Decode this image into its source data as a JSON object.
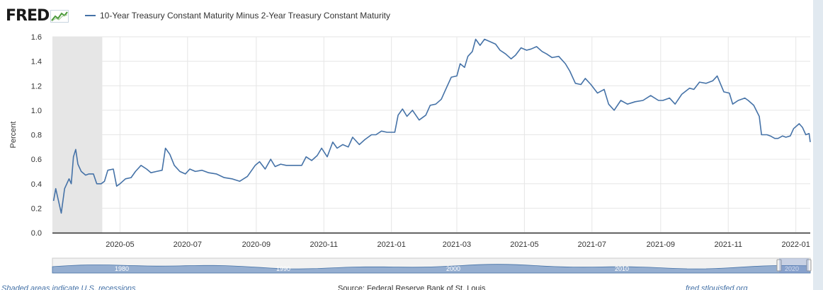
{
  "header": {
    "logo_text": "FRED",
    "logo_icon": "chart-line-icon",
    "series_name": "10-Year Treasury Constant Maturity Minus 2-Year Treasury Constant Maturity"
  },
  "colors": {
    "series": "#4572a7",
    "recession_shade": "#e6e6e6",
    "navigator_fill": "#95aed0",
    "background": "#e1e9f0"
  },
  "footer": {
    "left": "Shaded areas indicate U.S. recessions",
    "center": "Source: Federal Reserve Bank of St. Louis",
    "right": "fred.stlouisfed.org"
  },
  "chart_data": {
    "type": "line",
    "title": "",
    "ylabel": "Percent",
    "xlabel": "",
    "ylim": [
      0.0,
      1.6
    ],
    "yticks": [
      "0.0",
      "0.2",
      "0.4",
      "0.6",
      "0.8",
      "1.0",
      "1.2",
      "1.4",
      "1.6"
    ],
    "xlim": [
      "2020-03-01",
      "2022-01-14"
    ],
    "xticks": [
      "2020-05",
      "2020-07",
      "2020-09",
      "2020-11",
      "2021-01",
      "2021-03",
      "2021-05",
      "2021-07",
      "2021-09",
      "2021-11",
      "2022-01"
    ],
    "recession_shading": [
      {
        "start": "2020-03-01",
        "end": "2020-04-15"
      }
    ],
    "legend": "top-left",
    "grid": true,
    "navigator": {
      "labels": [
        "1980",
        "1990",
        "2000",
        "2010",
        "2020"
      ]
    },
    "series": [
      {
        "name": "10-Year Treasury Constant Maturity Minus 2-Year Treasury Constant Maturity",
        "points": [
          [
            "2020-03-02",
            0.26
          ],
          [
            "2020-03-04",
            0.36
          ],
          [
            "2020-03-06",
            0.28
          ],
          [
            "2020-03-09",
            0.16
          ],
          [
            "2020-03-12",
            0.36
          ],
          [
            "2020-03-16",
            0.44
          ],
          [
            "2020-03-18",
            0.4
          ],
          [
            "2020-03-20",
            0.62
          ],
          [
            "2020-03-22",
            0.68
          ],
          [
            "2020-03-24",
            0.56
          ],
          [
            "2020-03-27",
            0.5
          ],
          [
            "2020-03-31",
            0.47
          ],
          [
            "2020-04-03",
            0.48
          ],
          [
            "2020-04-07",
            0.48
          ],
          [
            "2020-04-10",
            0.4
          ],
          [
            "2020-04-14",
            0.4
          ],
          [
            "2020-04-17",
            0.42
          ],
          [
            "2020-04-20",
            0.51
          ],
          [
            "2020-04-25",
            0.52
          ],
          [
            "2020-04-28",
            0.38
          ],
          [
            "2020-05-01",
            0.4
          ],
          [
            "2020-05-06",
            0.44
          ],
          [
            "2020-05-11",
            0.45
          ],
          [
            "2020-05-15",
            0.5
          ],
          [
            "2020-05-20",
            0.55
          ],
          [
            "2020-05-25",
            0.52
          ],
          [
            "2020-05-29",
            0.49
          ],
          [
            "2020-06-03",
            0.5
          ],
          [
            "2020-06-08",
            0.51
          ],
          [
            "2020-06-11",
            0.69
          ],
          [
            "2020-06-15",
            0.64
          ],
          [
            "2020-06-19",
            0.55
          ],
          [
            "2020-06-24",
            0.5
          ],
          [
            "2020-06-29",
            0.48
          ],
          [
            "2020-07-03",
            0.52
          ],
          [
            "2020-07-08",
            0.5
          ],
          [
            "2020-07-14",
            0.51
          ],
          [
            "2020-07-20",
            0.49
          ],
          [
            "2020-07-27",
            0.48
          ],
          [
            "2020-08-03",
            0.45
          ],
          [
            "2020-08-10",
            0.44
          ],
          [
            "2020-08-17",
            0.42
          ],
          [
            "2020-08-24",
            0.46
          ],
          [
            "2020-08-31",
            0.55
          ],
          [
            "2020-09-04",
            0.58
          ],
          [
            "2020-09-09",
            0.52
          ],
          [
            "2020-09-14",
            0.6
          ],
          [
            "2020-09-18",
            0.54
          ],
          [
            "2020-09-23",
            0.56
          ],
          [
            "2020-09-28",
            0.55
          ],
          [
            "2020-10-05",
            0.55
          ],
          [
            "2020-10-12",
            0.55
          ],
          [
            "2020-10-16",
            0.62
          ],
          [
            "2020-10-21",
            0.59
          ],
          [
            "2020-10-26",
            0.63
          ],
          [
            "2020-10-30",
            0.69
          ],
          [
            "2020-11-04",
            0.62
          ],
          [
            "2020-11-09",
            0.74
          ],
          [
            "2020-11-13",
            0.69
          ],
          [
            "2020-11-18",
            0.72
          ],
          [
            "2020-11-23",
            0.7
          ],
          [
            "2020-11-27",
            0.78
          ],
          [
            "2020-12-03",
            0.72
          ],
          [
            "2020-12-08",
            0.76
          ],
          [
            "2020-12-14",
            0.8
          ],
          [
            "2020-12-18",
            0.8
          ],
          [
            "2020-12-23",
            0.83
          ],
          [
            "2020-12-28",
            0.82
          ],
          [
            "2021-01-04",
            0.82
          ],
          [
            "2021-01-07",
            0.96
          ],
          [
            "2021-01-11",
            1.01
          ],
          [
            "2021-01-15",
            0.95
          ],
          [
            "2021-01-20",
            1.0
          ],
          [
            "2021-01-26",
            0.92
          ],
          [
            "2021-02-01",
            0.96
          ],
          [
            "2021-02-05",
            1.04
          ],
          [
            "2021-02-10",
            1.05
          ],
          [
            "2021-02-15",
            1.09
          ],
          [
            "2021-02-19",
            1.17
          ],
          [
            "2021-02-24",
            1.27
          ],
          [
            "2021-03-01",
            1.28
          ],
          [
            "2021-03-04",
            1.38
          ],
          [
            "2021-03-08",
            1.35
          ],
          [
            "2021-03-11",
            1.44
          ],
          [
            "2021-03-15",
            1.48
          ],
          [
            "2021-03-18",
            1.58
          ],
          [
            "2021-03-22",
            1.53
          ],
          [
            "2021-03-26",
            1.58
          ],
          [
            "2021-03-31",
            1.56
          ],
          [
            "2021-04-05",
            1.54
          ],
          [
            "2021-04-09",
            1.49
          ],
          [
            "2021-04-14",
            1.46
          ],
          [
            "2021-04-19",
            1.42
          ],
          [
            "2021-04-23",
            1.45
          ],
          [
            "2021-04-28",
            1.51
          ],
          [
            "2021-05-03",
            1.49
          ],
          [
            "2021-05-07",
            1.5
          ],
          [
            "2021-05-12",
            1.52
          ],
          [
            "2021-05-17",
            1.48
          ],
          [
            "2021-05-21",
            1.46
          ],
          [
            "2021-05-26",
            1.43
          ],
          [
            "2021-06-01",
            1.44
          ],
          [
            "2021-06-07",
            1.38
          ],
          [
            "2021-06-11",
            1.32
          ],
          [
            "2021-06-16",
            1.22
          ],
          [
            "2021-06-21",
            1.21
          ],
          [
            "2021-06-25",
            1.26
          ],
          [
            "2021-06-30",
            1.21
          ],
          [
            "2021-07-06",
            1.14
          ],
          [
            "2021-07-12",
            1.17
          ],
          [
            "2021-07-16",
            1.05
          ],
          [
            "2021-07-21",
            1.0
          ],
          [
            "2021-07-27",
            1.08
          ],
          [
            "2021-08-02",
            1.05
          ],
          [
            "2021-08-09",
            1.07
          ],
          [
            "2021-08-16",
            1.08
          ],
          [
            "2021-08-23",
            1.12
          ],
          [
            "2021-08-30",
            1.08
          ],
          [
            "2021-09-03",
            1.08
          ],
          [
            "2021-09-09",
            1.1
          ],
          [
            "2021-09-14",
            1.05
          ],
          [
            "2021-09-20",
            1.13
          ],
          [
            "2021-09-27",
            1.18
          ],
          [
            "2021-10-01",
            1.17
          ],
          [
            "2021-10-06",
            1.23
          ],
          [
            "2021-10-12",
            1.22
          ],
          [
            "2021-10-18",
            1.24
          ],
          [
            "2021-10-22",
            1.28
          ],
          [
            "2021-10-28",
            1.15
          ],
          [
            "2021-11-02",
            1.14
          ],
          [
            "2021-11-05",
            1.05
          ],
          [
            "2021-11-10",
            1.08
          ],
          [
            "2021-11-16",
            1.1
          ],
          [
            "2021-11-19",
            1.08
          ],
          [
            "2021-11-24",
            1.04
          ],
          [
            "2021-11-29",
            0.95
          ],
          [
            "2021-12-01",
            0.8
          ],
          [
            "2021-12-06",
            0.8
          ],
          [
            "2021-12-09",
            0.79
          ],
          [
            "2021-12-13",
            0.77
          ],
          [
            "2021-12-16",
            0.77
          ],
          [
            "2021-12-20",
            0.79
          ],
          [
            "2021-12-23",
            0.78
          ],
          [
            "2021-12-27",
            0.79
          ],
          [
            "2021-12-30",
            0.85
          ],
          [
            "2022-01-04",
            0.89
          ],
          [
            "2022-01-07",
            0.86
          ],
          [
            "2022-01-10",
            0.8
          ],
          [
            "2022-01-13",
            0.81
          ],
          [
            "2022-01-14",
            0.74
          ]
        ]
      }
    ]
  }
}
